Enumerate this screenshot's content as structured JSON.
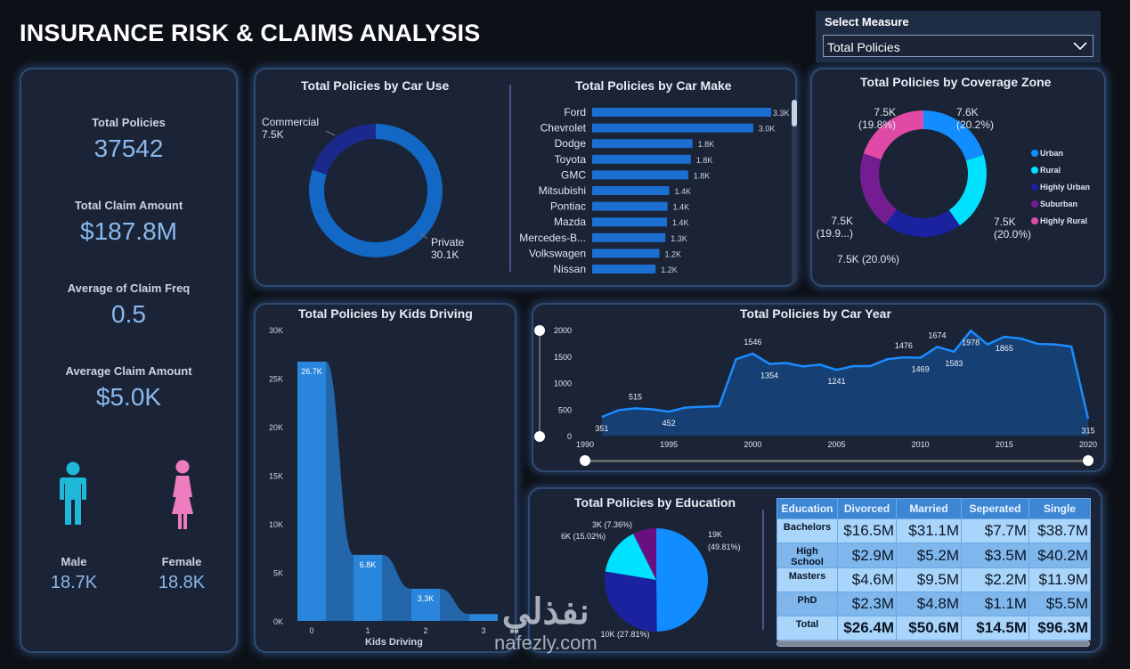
{
  "header": {
    "title": "INSURANCE RISK & CLAIMS ANALYSIS"
  },
  "measure_select": {
    "label": "Select Measure",
    "value": "Total Policies"
  },
  "kpis": [
    {
      "label": "Total Policies",
      "value": "37542"
    },
    {
      "label": "Total Claim Amount",
      "value": "$187.8M"
    },
    {
      "label": "Average of Claim Freq",
      "value": "0.5"
    },
    {
      "label": "Average Claim Amount",
      "value": "$5.0K"
    }
  ],
  "gender": {
    "male_label": "Male",
    "male_value": "18.7K",
    "female_label": "Female",
    "female_value": "18.8K",
    "male_color": "#1fb8d8",
    "female_color": "#f07cc0"
  },
  "colors": {
    "accent": "#118dff",
    "cyan": "#00e1ff",
    "navy": "#1b22a0",
    "purple": "#6a1a8f",
    "pink": "#e04aa6",
    "panel": "#1a2436"
  },
  "chart_data": [
    {
      "type": "pie",
      "title": "Total Policies by Car Use",
      "donut": true,
      "slices": [
        {
          "name": "Private",
          "value": 30.1,
          "label": "30.1K",
          "color": "#1268c4"
        },
        {
          "name": "Commercial",
          "value": 7.5,
          "label": "7.5K",
          "color": "#1a2a8c"
        }
      ]
    },
    {
      "type": "bar",
      "orientation": "horizontal",
      "title": "Total Policies by Car Make",
      "categories": [
        "Ford",
        "Chevrolet",
        "Dodge",
        "Toyota",
        "GMC",
        "Mitsubishi",
        "Pontiac",
        "Mazda",
        "Mercedes-B...",
        "Volkswagen",
        "Nissan"
      ],
      "values": [
        3300,
        2970,
        1850,
        1820,
        1770,
        1420,
        1390,
        1380,
        1350,
        1240,
        1170
      ],
      "labels": [
        "3.3K",
        "3.0K",
        "1.8K",
        "1.8K",
        "1.8K",
        "1.4K",
        "1.4K",
        "1.4K",
        "1.3K",
        "1.2K",
        "1.2K"
      ]
    },
    {
      "type": "pie",
      "title": "Total Policies by Coverage Zone",
      "donut": true,
      "legend": "right",
      "slices": [
        {
          "name": "Urban",
          "value": 20.2,
          "label": "7.6K\n(20.2%)",
          "color": "#118dff"
        },
        {
          "name": "Rural",
          "value": 20.0,
          "label": "7.5K\n(20.0%)",
          "color": "#00e1ff"
        },
        {
          "name": "Highly Urban",
          "value": 20.0,
          "label": "7.5K (20.0%)",
          "color": "#1b22a0"
        },
        {
          "name": "Suburban",
          "value": 19.9,
          "label": "7.5K\n(19.9...)",
          "color": "#741d93"
        },
        {
          "name": "Highly Rural",
          "value": 19.8,
          "label": "7.5K\n(19.8%)",
          "color": "#e04aa6"
        }
      ]
    },
    {
      "type": "bar",
      "title": "Total Policies by Kids Driving",
      "xlabel": "Kids Driving",
      "categories": [
        "0",
        "1",
        "2",
        "3"
      ],
      "values": [
        26700,
        6800,
        3300,
        700
      ],
      "labels": [
        "26.7K",
        "6.8K",
        "3.3K",
        ""
      ],
      "ylim": [
        0,
        30000
      ],
      "yticks": [
        "0K",
        "5K",
        "10K",
        "15K",
        "20K",
        "25K",
        "30K"
      ]
    },
    {
      "type": "area",
      "title": "Total Policies by Car Year",
      "x": [
        1991,
        1992,
        1993,
        1994,
        1995,
        1996,
        1997,
        1998,
        1999,
        2000,
        2001,
        2002,
        2003,
        2004,
        2005,
        2006,
        2007,
        2008,
        2009,
        2010,
        2011,
        2012,
        2013,
        2014,
        2015,
        2016,
        2017,
        2018,
        2019,
        2020
      ],
      "y": [
        351,
        480,
        515,
        495,
        452,
        530,
        545,
        555,
        1440,
        1546,
        1354,
        1370,
        1305,
        1340,
        1241,
        1310,
        1310,
        1440,
        1476,
        1469,
        1674,
        1583,
        1978,
        1720,
        1865,
        1830,
        1730,
        1720,
        1680,
        315
      ],
      "labeled": [
        351,
        515,
        452,
        1546,
        1354,
        1241,
        1476,
        1469,
        1674,
        1583,
        1978,
        1865,
        315
      ],
      "xlim": [
        1990,
        2020
      ],
      "ylim": [
        0,
        2000
      ],
      "xticks": [
        "1990",
        "1995",
        "2000",
        "2005",
        "2010",
        "2015",
        "2020"
      ],
      "yticks": [
        "0",
        "500",
        "1000",
        "1500",
        "2000"
      ]
    },
    {
      "type": "pie",
      "title": "Total Policies by Education",
      "slices": [
        {
          "value": 49.81,
          "label": "19K\n(49.81%)",
          "color": "#118dff"
        },
        {
          "value": 27.81,
          "label": "10K (27.81%)",
          "color": "#1b22a0"
        },
        {
          "value": 15.02,
          "label": "6K (15.02%)",
          "color": "#00e1ff"
        },
        {
          "value": 7.36,
          "label": "3K (7.36%)",
          "color": "#6a0f80"
        }
      ]
    },
    {
      "type": "table",
      "columns": [
        "Education",
        "Divorced",
        "Married",
        "Seperated",
        "Single"
      ],
      "rows": [
        [
          "Bachelors",
          "$16.5M",
          "$31.1M",
          "$7.7M",
          "$38.7M"
        ],
        [
          "High School",
          "$2.9M",
          "$5.2M",
          "$3.5M",
          "$40.2M"
        ],
        [
          "Masters",
          "$4.6M",
          "$9.5M",
          "$2.2M",
          "$11.9M"
        ],
        [
          "PhD",
          "$2.3M",
          "$4.8M",
          "$1.1M",
          "$5.5M"
        ]
      ],
      "total": [
        "Total",
        "$26.4M",
        "$50.6M",
        "$14.5M",
        "$96.3M"
      ]
    }
  ],
  "watermark": {
    "arabic": "نفذلي",
    "latin": "nafezly.com"
  }
}
